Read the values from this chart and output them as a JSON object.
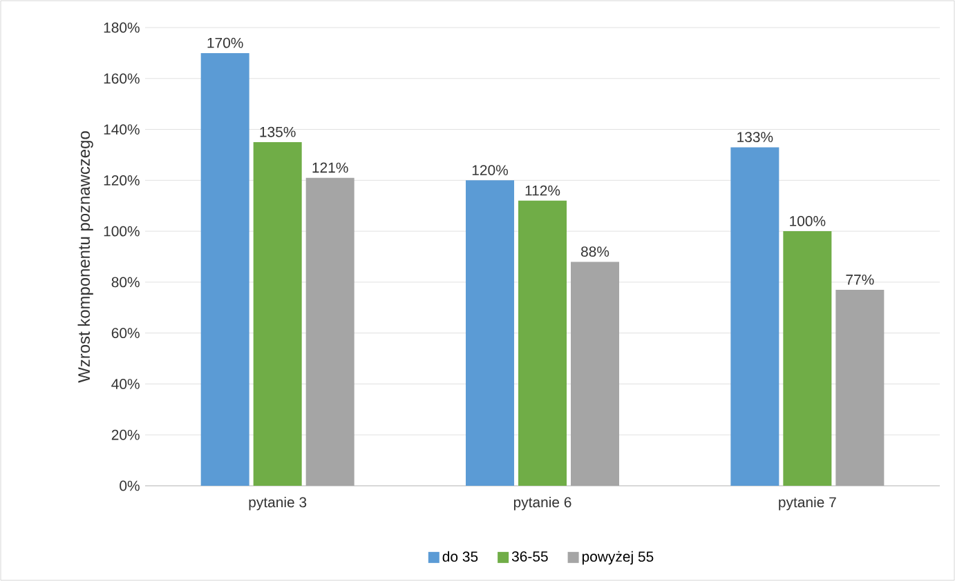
{
  "chart_data": {
    "type": "bar",
    "ylabel": "Wzrost komponentu poznawczego",
    "categories": [
      "pytanie 3",
      "pytanie 6",
      "pytanie 7"
    ],
    "series": [
      {
        "name": "do 35",
        "color": "#5b9bd5",
        "values": [
          170,
          120,
          133
        ],
        "value_labels": [
          "170%",
          "120%",
          "133%"
        ]
      },
      {
        "name": "36-55",
        "color": "#70ad47",
        "values": [
          135,
          112,
          100
        ],
        "value_labels": [
          "135%",
          "112%",
          "100%"
        ]
      },
      {
        "name": "powyżej 55",
        "color": "#a5a5a5",
        "values": [
          121,
          88,
          77
        ],
        "value_labels": [
          "121%",
          "88%",
          "77%"
        ]
      }
    ],
    "ylim": [
      0,
      180
    ],
    "yticks": [
      {
        "value": 0,
        "label": "0%"
      },
      {
        "value": 20,
        "label": "20%"
      },
      {
        "value": 40,
        "label": "40%"
      },
      {
        "value": 60,
        "label": "60%"
      },
      {
        "value": 80,
        "label": "80%"
      },
      {
        "value": 100,
        "label": "100%"
      },
      {
        "value": 120,
        "label": "120%"
      },
      {
        "value": 140,
        "label": "140%"
      },
      {
        "value": 160,
        "label": "160%"
      },
      {
        "value": 180,
        "label": "180%"
      }
    ],
    "grid": "y",
    "legend": "bottom"
  }
}
